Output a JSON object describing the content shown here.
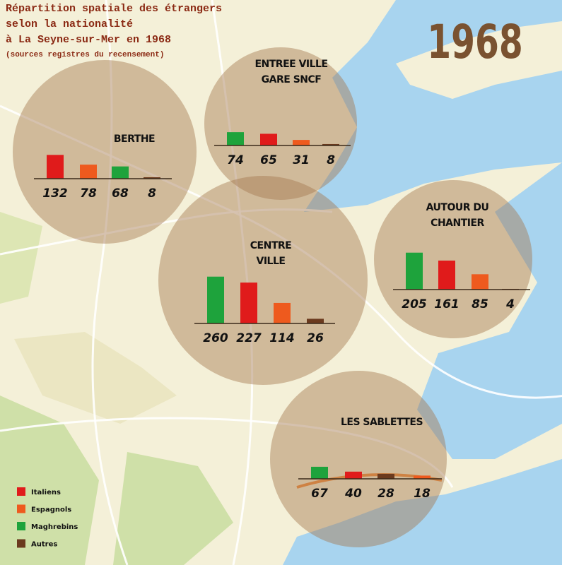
{
  "title": [
    "Répartition spatiale des étrangers",
    "selon la nationalité",
    "à La Seyne-sur-Mer en 1968"
  ],
  "source": "(sources registres du recensement)",
  "year": "1968",
  "legend": [
    {
      "name": "Italiens",
      "color": "#e01b1b"
    },
    {
      "name": "Espagnols",
      "color": "#ee5a1e"
    },
    {
      "name": "Maghrebins",
      "color": "#1ea33c"
    },
    {
      "name": "Autres",
      "color": "#6b3a1e"
    }
  ],
  "districts": [
    {
      "name": [
        "BERTHE"
      ],
      "bars": [
        {
          "nationality": "Italiens",
          "value": 132
        },
        {
          "nationality": "Espagnols",
          "value": 78
        },
        {
          "nationality": "Maghrebins",
          "value": 68
        },
        {
          "nationality": "Autres",
          "value": 8
        }
      ]
    },
    {
      "name": [
        "ENTREE VILLE",
        "GARE SNCF"
      ],
      "bars": [
        {
          "nationality": "Maghrebins",
          "value": 74
        },
        {
          "nationality": "Italiens",
          "value": 65
        },
        {
          "nationality": "Espagnols",
          "value": 31
        },
        {
          "nationality": "Autres",
          "value": 8
        }
      ]
    },
    {
      "name": [
        "CENTRE",
        "VILLE"
      ],
      "bars": [
        {
          "nationality": "Maghrebins",
          "value": 260
        },
        {
          "nationality": "Italiens",
          "value": 227
        },
        {
          "nationality": "Espagnols",
          "value": 114
        },
        {
          "nationality": "Autres",
          "value": 26
        }
      ]
    },
    {
      "name": [
        "AUTOUR DU",
        "CHANTIER"
      ],
      "bars": [
        {
          "nationality": "Maghrebins",
          "value": 205
        },
        {
          "nationality": "Italiens",
          "value": 161
        },
        {
          "nationality": "Espagnols",
          "value": 85
        },
        {
          "nationality": "Autres",
          "value": 4
        }
      ]
    },
    {
      "name": [
        "LES SABLETTES"
      ],
      "bars": [
        {
          "nationality": "Maghrebins",
          "value": 67
        },
        {
          "nationality": "Italiens",
          "value": 40
        },
        {
          "nationality": "Autres",
          "value": 28
        },
        {
          "nationality": "Espagnols",
          "value": 18
        }
      ]
    }
  ]
}
